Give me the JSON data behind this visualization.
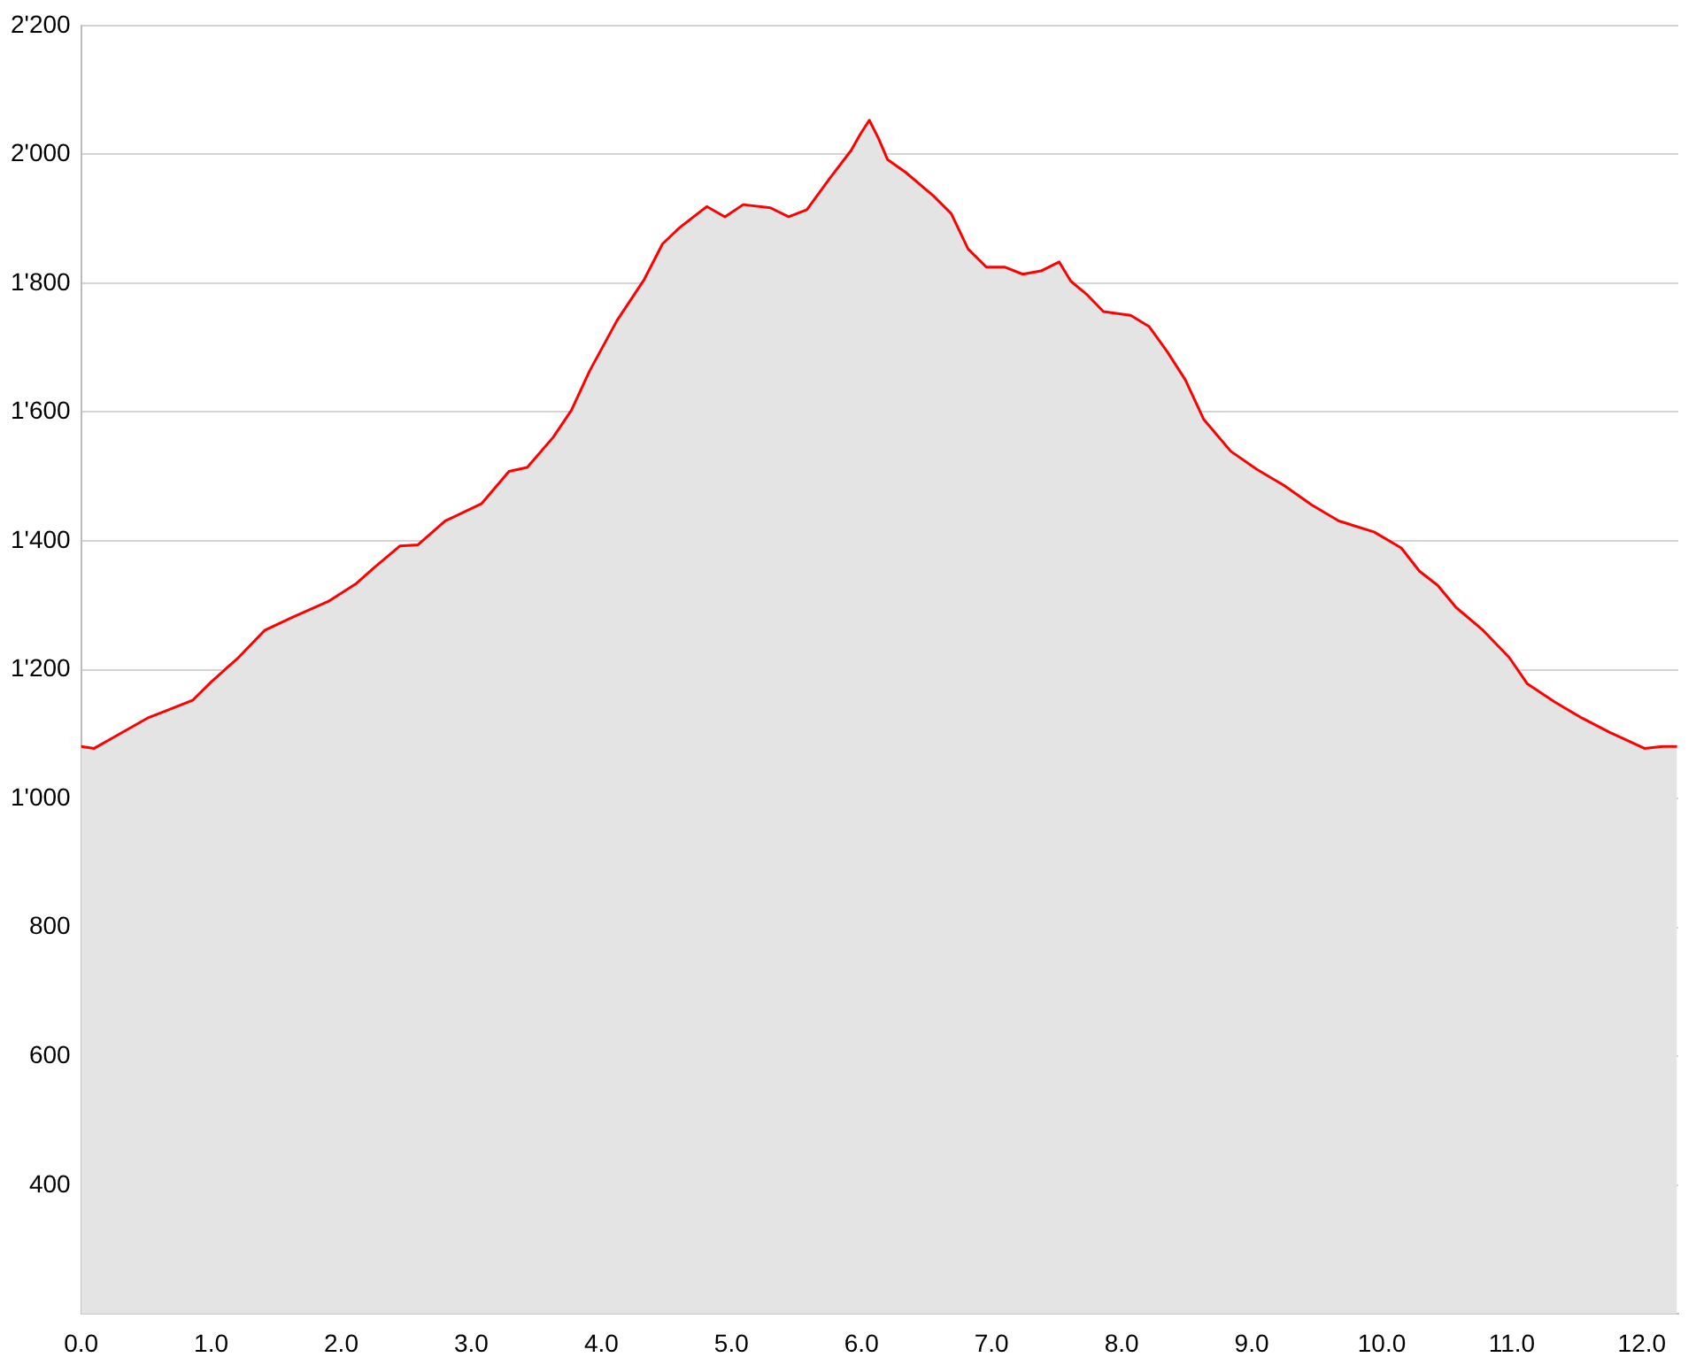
{
  "chart_data": {
    "type": "area",
    "grid": "y",
    "xlim": [
      0,
      12.28
    ],
    "ylim": [
      200,
      2200
    ],
    "xticks": [
      {
        "value": 0,
        "label": "0.0"
      },
      {
        "value": 1,
        "label": "1.0"
      },
      {
        "value": 2,
        "label": "2.0"
      },
      {
        "value": 3,
        "label": "3.0"
      },
      {
        "value": 4,
        "label": "4.0"
      },
      {
        "value": 5,
        "label": "5.0"
      },
      {
        "value": 6,
        "label": "6.0"
      },
      {
        "value": 7,
        "label": "7.0"
      },
      {
        "value": 8,
        "label": "8.0"
      },
      {
        "value": 9,
        "label": "9.0"
      },
      {
        "value": 10,
        "label": "10.0"
      },
      {
        "value": 11,
        "label": "11.0"
      },
      {
        "value": 12,
        "label": "12.0"
      }
    ],
    "yticks": [
      400,
      600,
      800,
      {
        "value": 1000,
        "label": "1'000"
      },
      {
        "value": 1200,
        "label": "1'200"
      },
      {
        "value": 1400,
        "label": "1'400"
      },
      {
        "value": 1600,
        "label": "1'600"
      },
      {
        "value": 1800,
        "label": "1'800"
      },
      {
        "value": 2000,
        "label": "2'000"
      },
      {
        "value": 2200,
        "label": "2'200"
      }
    ],
    "series": [
      {
        "color": "#ff0000",
        "x": [
          0,
          0.1,
          0.24,
          0.51,
          0.65,
          0.86,
          1.0,
          1.21,
          1.41,
          1.62,
          1.9,
          2.11,
          2.25,
          2.45,
          2.59,
          2.8,
          3.08,
          3.29,
          3.43,
          3.63,
          3.77,
          3.91,
          4.12,
          4.33,
          4.47,
          4.6,
          4.81,
          4.95,
          5.09,
          5.3,
          5.44,
          5.58,
          5.76,
          5.92,
          5.99,
          6.06,
          6.13,
          6.2,
          6.34,
          6.55,
          6.69,
          6.82,
          6.96,
          7.1,
          7.24,
          7.38,
          7.52,
          7.61,
          7.73,
          7.86,
          8.07,
          8.21,
          8.35,
          8.49,
          8.63,
          8.84,
          9.04,
          9.25,
          9.46,
          9.67,
          9.94,
          10.15,
          10.29,
          10.43,
          10.57,
          10.78,
          10.98,
          11.12,
          11.33,
          11.54,
          11.75,
          12.02,
          12.16,
          12.27
        ],
        "values": [
          1081,
          1078,
          1094,
          1125,
          1136,
          1153,
          1181,
          1219,
          1261,
          1281,
          1306,
          1333,
          1358,
          1392,
          1394,
          1431,
          1458,
          1508,
          1514,
          1561,
          1603,
          1664,
          1742,
          1806,
          1861,
          1886,
          1919,
          1903,
          1922,
          1917,
          1903,
          1914,
          1964,
          2006,
          2031,
          2053,
          2025,
          1992,
          1972,
          1936,
          1908,
          1853,
          1825,
          1825,
          1814,
          1819,
          1833,
          1803,
          1783,
          1756,
          1750,
          1733,
          1694,
          1650,
          1589,
          1539,
          1511,
          1486,
          1456,
          1431,
          1414,
          1389,
          1353,
          1331,
          1297,
          1261,
          1219,
          1178,
          1150,
          1125,
          1103,
          1078,
          1081,
          1081
        ]
      }
    ]
  }
}
